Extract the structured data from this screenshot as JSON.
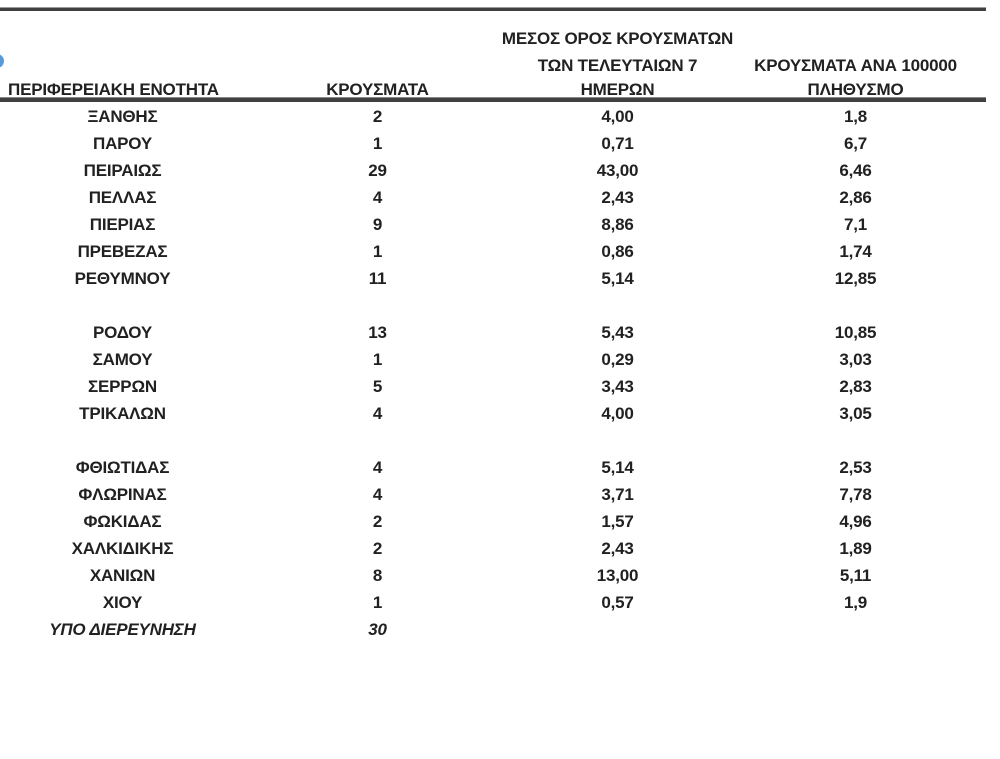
{
  "page": {
    "background": "#ffffff"
  },
  "decor": {
    "accent_blue": "#5b9bd5",
    "rule_color": "#404040",
    "text_color": "#212121"
  },
  "table": {
    "headers": {
      "region": "ΠΕΡΙΦΕΡΕΙΑΚΗ ΕΝΟΤΗΤΑ",
      "cases": "ΚΡΟΥΣΜΑΤΑ",
      "avg7_line1": "ΜΕΣΟΣ ΟΡΟΣ ΚΡΟΥΣΜΑΤΩΝ",
      "avg7_line2": "ΤΩΝ ΤΕΛΕΥΤΑΙΩΝ 7",
      "avg7_line3": "ΗΜΕΡΩΝ",
      "per100k_line1": "ΚΡΟΥΣΜΑΤΑ ΑΝΑ 100000",
      "per100k_line2": "ΠΛΗΘΥΣΜΟ"
    },
    "rows": [
      {
        "name": "ΞΑΝΘΗΣ",
        "cases": "2",
        "avg7": "4,00",
        "per100k": "1,8"
      },
      {
        "name": "ΠΑΡΟΥ",
        "cases": "1",
        "avg7": "0,71",
        "per100k": "6,7"
      },
      {
        "name": "ΠΕΙΡΑΙΩΣ",
        "cases": "29",
        "avg7": "43,00",
        "per100k": "6,46"
      },
      {
        "name": "ΠΕΛΛΑΣ",
        "cases": "4",
        "avg7": "2,43",
        "per100k": "2,86"
      },
      {
        "name": "ΠΙΕΡΙΑΣ",
        "cases": "9",
        "avg7": "8,86",
        "per100k": "7,1"
      },
      {
        "name": "ΠΡΕΒΕΖΑΣ",
        "cases": "1",
        "avg7": "0,86",
        "per100k": "1,74"
      },
      {
        "name": "ΡΕΘΥΜΝΟΥ",
        "cases": "11",
        "avg7": "5,14",
        "per100k": "12,85"
      },
      {
        "blank": true
      },
      {
        "name": "ΡΟΔΟΥ",
        "cases": "13",
        "avg7": "5,43",
        "per100k": "10,85"
      },
      {
        "name": "ΣΑΜΟΥ",
        "cases": "1",
        "avg7": "0,29",
        "per100k": "3,03"
      },
      {
        "name": "ΣΕΡΡΩΝ",
        "cases": "5",
        "avg7": "3,43",
        "per100k": "2,83"
      },
      {
        "name": "ΤΡΙΚΑΛΩΝ",
        "cases": "4",
        "avg7": "4,00",
        "per100k": "3,05"
      },
      {
        "blank": true
      },
      {
        "name": "ΦΘΙΩΤΙΔΑΣ",
        "cases": "4",
        "avg7": "5,14",
        "per100k": "2,53"
      },
      {
        "name": "ΦΛΩΡΙΝΑΣ",
        "cases": "4",
        "avg7": "3,71",
        "per100k": "7,78"
      },
      {
        "name": "ΦΩΚΙΔΑΣ",
        "cases": "2",
        "avg7": "1,57",
        "per100k": "4,96"
      },
      {
        "name": "ΧΑΛΚΙΔΙΚΗΣ",
        "cases": "2",
        "avg7": "2,43",
        "per100k": "1,89"
      },
      {
        "name": "ΧΑΝΙΩΝ",
        "cases": "8",
        "avg7": "13,00",
        "per100k": "5,11"
      },
      {
        "name": "ΧΙΟΥ",
        "cases": "1",
        "avg7": "0,57",
        "per100k": "1,9"
      },
      {
        "name": "ΥΠΟ ΔΙΕΡΕΥΝΗΣΗ",
        "cases": "30",
        "avg7": "",
        "per100k": "",
        "italic": true
      }
    ]
  }
}
